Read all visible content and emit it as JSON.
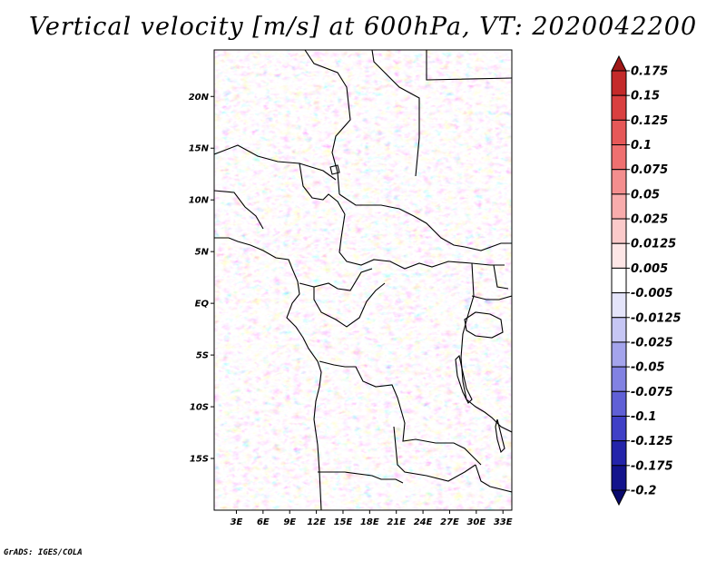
{
  "title": "Vertical velocity [m/s] at 600hPa, VT: 2020042200",
  "credit": "GrADS: IGES/COLA",
  "lat_labels": [
    "20N",
    "15N",
    "10N",
    "5N",
    "EQ",
    "5S",
    "10S",
    "15S"
  ],
  "lat_values": [
    20,
    15,
    10,
    5,
    0,
    -5,
    -10,
    -15
  ],
  "lon_labels": [
    "3E",
    "6E",
    "9E",
    "12E",
    "15E",
    "18E",
    "21E",
    "24E",
    "27E",
    "30E",
    "33E"
  ],
  "lon_values": [
    3,
    6,
    9,
    12,
    15,
    18,
    21,
    24,
    27,
    30,
    33
  ],
  "map_extent": {
    "lon_min": 0.5,
    "lon_max": 34,
    "lat_min": -20,
    "lat_max": 24.5
  },
  "colorbar": {
    "labels": [
      "0.175",
      "0.15",
      "0.125",
      "0.1",
      "0.075",
      "0.05",
      "0.025",
      "0.0125",
      "0.005",
      "-0.005",
      "-0.0125",
      "-0.025",
      "-0.05",
      "-0.075",
      "-0.1",
      "-0.125",
      "-0.175",
      "-0.2"
    ],
    "colors": [
      "#a01818",
      "#c42a2a",
      "#d94040",
      "#e65858",
      "#ef7070",
      "#f48e8e",
      "#f8acac",
      "#fbcaca",
      "#fde6e6",
      "#ffffff",
      "#e4e4fa",
      "#c6c6f4",
      "#a4a4ec",
      "#8282e2",
      "#6060d6",
      "#4040c6",
      "#2424aa",
      "#14148c",
      "#0a0a6e"
    ]
  }
}
